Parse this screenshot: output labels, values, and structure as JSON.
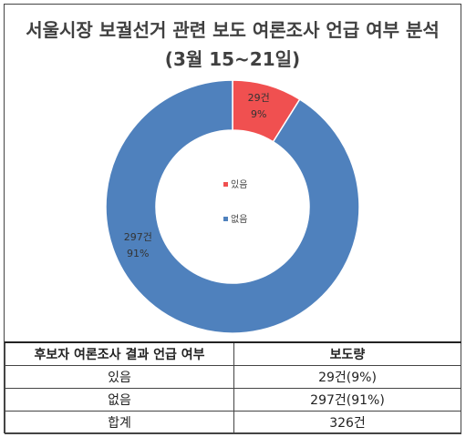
{
  "chart_data": {
    "type": "pie",
    "title": "서울시장 보궐선거 관련 보도 여론조사 언급 여부 분석",
    "subtitle": "(3월 15~21일)",
    "categories": [
      "있음",
      "없음"
    ],
    "values": [
      29,
      297
    ],
    "data_labels": [
      {
        "count": "29건",
        "pct": "9%"
      },
      {
        "count": "297건",
        "pct": "91%"
      }
    ],
    "colors": [
      "#f05050",
      "#4f81bd"
    ],
    "legend_placement": "center"
  },
  "table": {
    "headers": [
      "후보자 여론조사 결과 언급 여부",
      "보도량"
    ],
    "rows": [
      [
        "있음",
        "29건(9%)"
      ],
      [
        "없음",
        "297건(91%)"
      ],
      [
        "합계",
        "326건"
      ]
    ]
  }
}
